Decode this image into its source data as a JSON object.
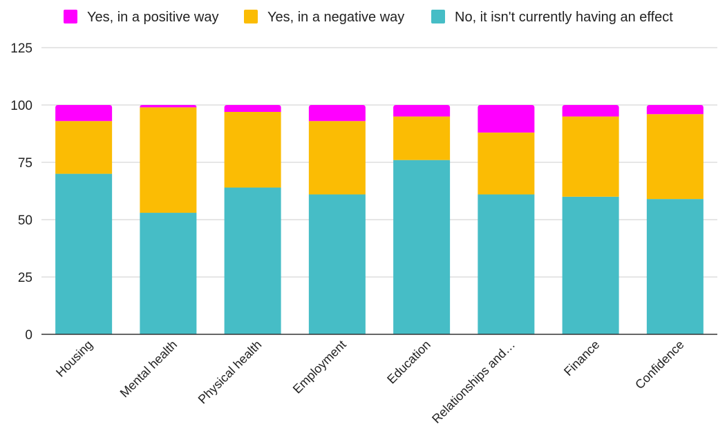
{
  "chart_data": {
    "type": "bar",
    "stacked": true,
    "categories": [
      "Housing",
      "Mental health",
      "Physical health",
      "Employment",
      "Education",
      "Relationships and…",
      "Finance",
      "Confidence"
    ],
    "series": [
      {
        "name": "No, it isn't currently having an effect",
        "color": "#46bdc6",
        "values": [
          70,
          53,
          64,
          61,
          76,
          61,
          60,
          59
        ]
      },
      {
        "name": "Yes, in a negative way",
        "color": "#fbbc04",
        "values": [
          23,
          46,
          33,
          32,
          19,
          27,
          35,
          37
        ]
      },
      {
        "name": "Yes, in a positive way",
        "color": "#ff00ff",
        "values": [
          7,
          1,
          3,
          7,
          5,
          12,
          5,
          4
        ]
      }
    ],
    "legend_order": [
      "Yes, in a positive way",
      "Yes, in a negative way",
      "No, it isn't currently having an effect"
    ],
    "legend_position": "top",
    "ylim": [
      0,
      125
    ],
    "yticks": [
      "0",
      "25",
      "50",
      "75",
      "100",
      "125"
    ],
    "grid": true,
    "title": "",
    "xlabel": "",
    "ylabel": ""
  }
}
